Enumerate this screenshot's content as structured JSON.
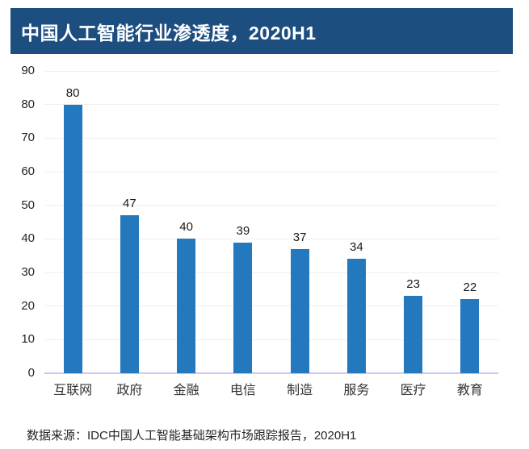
{
  "header": {
    "title": "中国人工智能行业渗透度，2020H1"
  },
  "footer": {
    "source": "数据来源：IDC中国人工智能基础架构市场跟踪报告，2020H1"
  },
  "colors": {
    "title_bg": "#1C4E80",
    "title_text": "#FFFFFF",
    "bar": "#2478BE",
    "gridline": "#EFEFEF",
    "axis_line": "#C9C9F1",
    "tick_text": "#262626"
  },
  "chart_data": {
    "type": "bar",
    "title": "中国人工智能行业渗透度，2020H1",
    "categories": [
      "互联网",
      "政府",
      "金融",
      "电信",
      "制造",
      "服务",
      "医疗",
      "教育"
    ],
    "values": [
      80,
      47,
      40,
      39,
      37,
      34,
      23,
      22
    ],
    "xlabel": "",
    "ylabel": "",
    "ylim": [
      0,
      90
    ],
    "ytick_step": 10,
    "yticks": [
      0,
      10,
      20,
      30,
      40,
      50,
      60,
      70,
      80,
      90
    ],
    "grid": "horizontal",
    "legend_position": "none",
    "data_labels": true,
    "source_note": "数据来源：IDC中国人工智能基础架构市场跟踪报告，2020H1"
  }
}
